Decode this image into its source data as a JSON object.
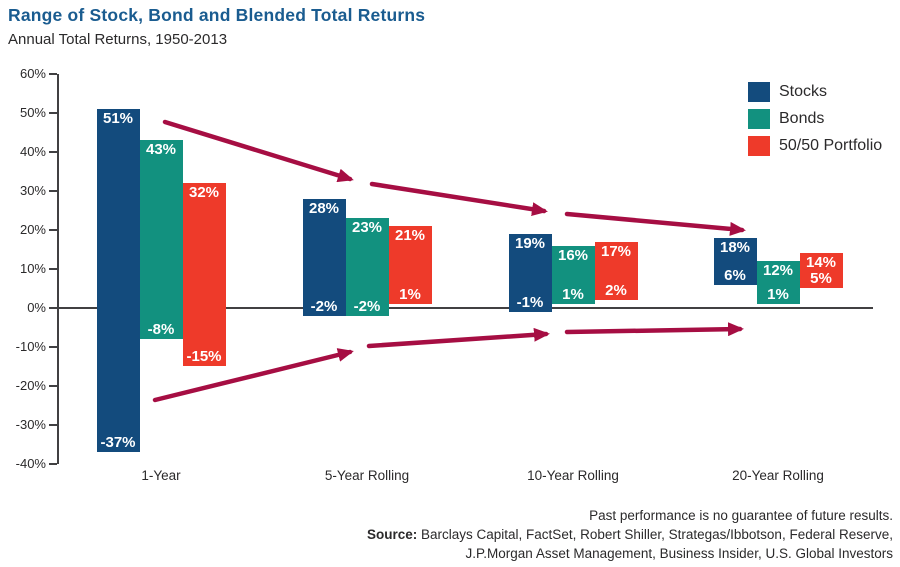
{
  "header": {
    "title": "Range of Stock, Bond and Blended Total Returns",
    "subtitle": "Annual Total Returns, 1950-2013"
  },
  "chart_data": {
    "type": "bar",
    "variant": "floating-range-columns",
    "title": "Range of Stock, Bond and Blended Total Returns",
    "subtitle": "Annual Total Returns, 1950-2013",
    "categories": [
      "1-Year",
      "5-Year Rolling",
      "10-Year Rolling",
      "20-Year Rolling"
    ],
    "series": [
      {
        "name": "Stocks",
        "color": "#134b7d",
        "ranges": [
          {
            "low": -37,
            "high": 51
          },
          {
            "low": -2,
            "high": 28
          },
          {
            "low": -1,
            "high": 19
          },
          {
            "low": 6,
            "high": 18
          }
        ]
      },
      {
        "name": "Bonds",
        "color": "#12917f",
        "ranges": [
          {
            "low": -8,
            "high": 43
          },
          {
            "low": -2,
            "high": 23
          },
          {
            "low": 1,
            "high": 16
          },
          {
            "low": 1,
            "high": 12
          }
        ]
      },
      {
        "name": "50/50 Portfolio",
        "color": "#ee3a2a",
        "ranges": [
          {
            "low": -15,
            "high": 32
          },
          {
            "low": 1,
            "high": 21
          },
          {
            "low": 2,
            "high": 17
          },
          {
            "low": 5,
            "high": 14
          }
        ]
      }
    ],
    "value_label_unit": "%",
    "y_axis": {
      "min": -40,
      "max": 60,
      "step": 10,
      "tick_labels": [
        "60%",
        "50%",
        "40%",
        "30%",
        "20%",
        "10%",
        "0%",
        "-10%",
        "-20%",
        "-30%",
        "-40%"
      ]
    },
    "legend": {
      "position": "top-right",
      "entries": [
        "Stocks",
        "Bonds",
        "50/50 Portfolio"
      ]
    },
    "annotations": {
      "convergence_arrows": {
        "color": "#a60e43",
        "meaning": "range of returns converges toward average over longer holding periods"
      }
    },
    "grid": false
  },
  "footer": {
    "disclaimer": "Past performance is no guarantee of future results.",
    "source_label": "Source:",
    "source_line1": " Barclays Capital, FactSet, Robert Shiller, Strategas/Ibbotson, Federal Reserve,",
    "source_line2": "J.P.Morgan Asset Management, Business Insider, U.S. Global Investors"
  }
}
